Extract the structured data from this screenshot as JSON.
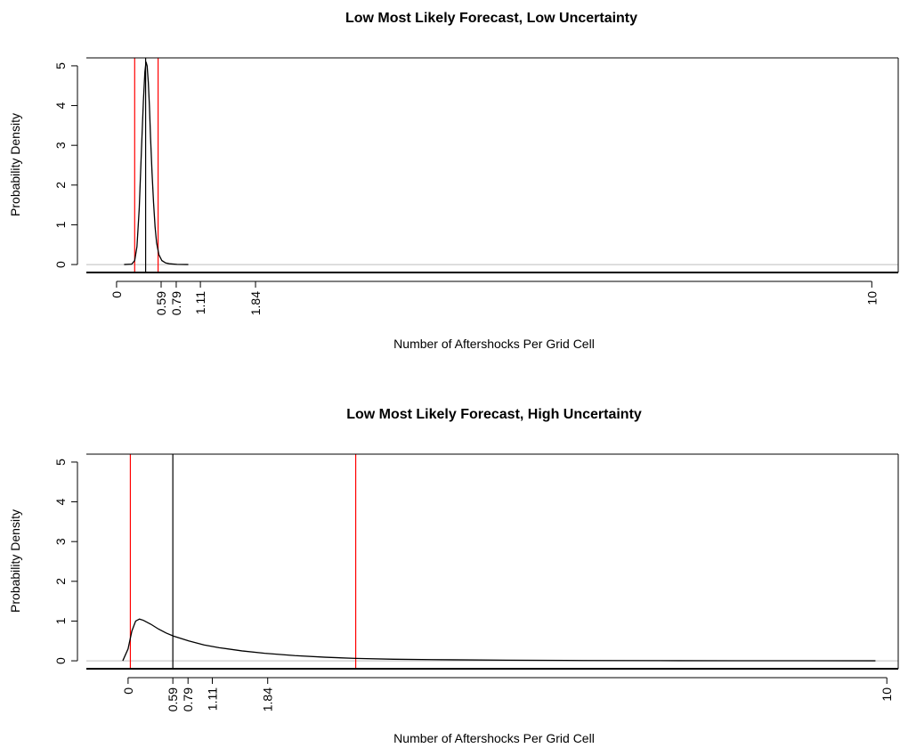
{
  "chart_data": [
    {
      "type": "line",
      "title": "Low Most Likely Forecast, Low Uncertainty",
      "xlabel": "Number of Aftershocks Per Grid Cell",
      "ylabel": "Probability Density",
      "xlim": [
        -0.4,
        10.35
      ],
      "ylim": [
        -0.2,
        5.2
      ],
      "x_ticks": [
        {
          "value": 0,
          "label": "0"
        },
        {
          "value": 0.59,
          "label": "0.59"
        },
        {
          "value": 0.79,
          "label": "0.79"
        },
        {
          "value": 1.11,
          "label": "1.11"
        },
        {
          "value": 1.84,
          "label": "1.84"
        },
        {
          "value": 10,
          "label": "10"
        }
      ],
      "y_ticks": [
        0,
        1,
        2,
        3,
        4,
        5
      ],
      "zero_line_color": "#bebebe",
      "series": [
        {
          "color": "#000000",
          "x": [
            0.1,
            0.2,
            0.24,
            0.27,
            0.3,
            0.33,
            0.355,
            0.375,
            0.39,
            0.405,
            0.42,
            0.435,
            0.45,
            0.47,
            0.49,
            0.51,
            0.53,
            0.56,
            0.6,
            0.65,
            0.7,
            0.8,
            0.95
          ],
          "y": [
            0.0,
            0.01,
            0.1,
            0.45,
            1.4,
            2.9,
            4.1,
            4.85,
            5.1,
            5.0,
            4.6,
            4.0,
            3.2,
            2.3,
            1.55,
            0.95,
            0.55,
            0.25,
            0.1,
            0.04,
            0.02,
            0.005,
            0.0
          ]
        }
      ],
      "vlines": [
        {
          "x": 0.24,
          "color": "#ff0000"
        },
        {
          "x": 0.385,
          "color": "#000000"
        },
        {
          "x": 0.55,
          "color": "#ff0000"
        }
      ]
    },
    {
      "type": "line",
      "title": "Low Most Likely Forecast, High Uncertainty",
      "xlabel": "Number of Aftershocks Per Grid Cell",
      "ylabel": "Probability Density",
      "xlim": [
        -0.55,
        10.15
      ],
      "ylim": [
        -0.2,
        5.2
      ],
      "x_ticks": [
        {
          "value": 0,
          "label": "0"
        },
        {
          "value": 0.59,
          "label": "0.59"
        },
        {
          "value": 0.79,
          "label": "0.79"
        },
        {
          "value": 1.11,
          "label": "1.11"
        },
        {
          "value": 1.84,
          "label": "1.84"
        },
        {
          "value": 10,
          "label": "10"
        }
      ],
      "y_ticks": [
        0,
        1,
        2,
        3,
        4,
        5
      ],
      "zero_line_color": "#bebebe",
      "series": [
        {
          "color": "#000000",
          "x": [
            -0.07,
            0.0,
            0.05,
            0.1,
            0.15,
            0.2,
            0.3,
            0.4,
            0.5,
            0.6,
            0.8,
            1.0,
            1.2,
            1.5,
            1.8,
            2.2,
            2.6,
            3.0,
            3.5,
            4.0,
            5.0,
            6.0,
            7.0,
            8.0,
            9.0,
            9.85
          ],
          "y": [
            0.0,
            0.3,
            0.75,
            1.0,
            1.05,
            1.02,
            0.92,
            0.8,
            0.7,
            0.62,
            0.5,
            0.4,
            0.33,
            0.25,
            0.19,
            0.13,
            0.09,
            0.06,
            0.04,
            0.03,
            0.015,
            0.008,
            0.004,
            0.002,
            0.001,
            0.0
          ]
        }
      ],
      "vlines": [
        {
          "x": 0.03,
          "color": "#ff0000"
        },
        {
          "x": 0.59,
          "color": "#000000"
        },
        {
          "x": 3.0,
          "color": "#ff0000"
        }
      ]
    }
  ]
}
